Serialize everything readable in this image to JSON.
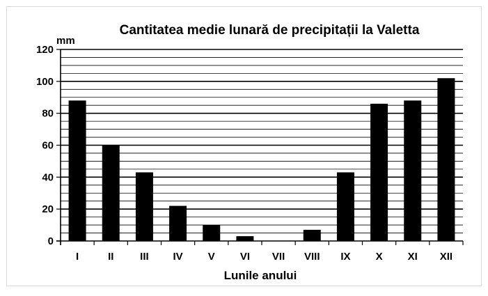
{
  "chart_data": {
    "type": "bar",
    "title": "Cantitatea medie lunară de precipitații la Valetta",
    "ylabel": "mm",
    "xlabel": "Lunile anului",
    "categories": [
      "I",
      "II",
      "III",
      "IV",
      "V",
      "VI",
      "VII",
      "VIII",
      "IX",
      "X",
      "XI",
      "XII"
    ],
    "values": [
      88,
      60,
      43,
      22,
      10,
      3,
      0,
      7,
      43,
      86,
      88,
      102
    ],
    "ylim": [
      0,
      120
    ],
    "yticks": [
      "0",
      "20",
      "40",
      "60",
      "80",
      "100",
      "120"
    ],
    "grid": true,
    "minor_grid_step": 5,
    "legend": "none",
    "colors": {
      "bar": "#000000",
      "grid": "#000000",
      "frame": "#d9d9d9",
      "background": "#ffffff"
    }
  }
}
